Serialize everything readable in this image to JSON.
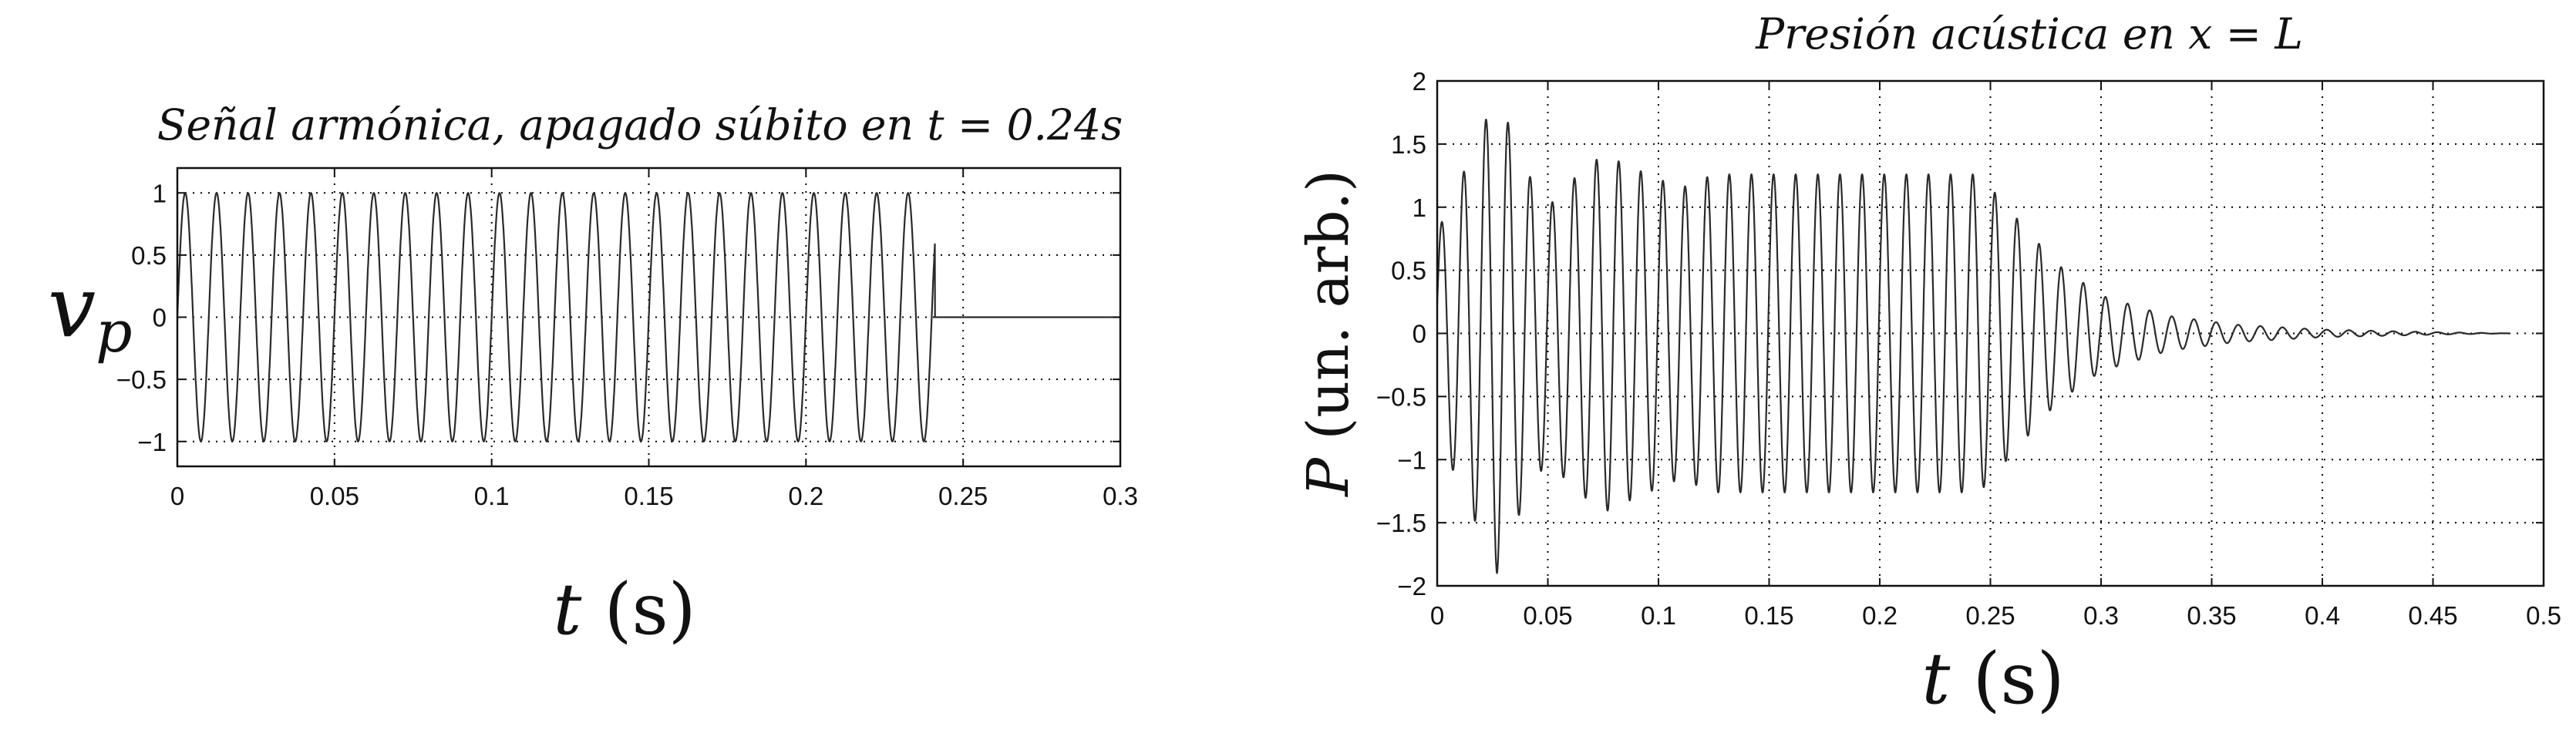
{
  "chart_data": [
    {
      "type": "line",
      "title": "Señal armónica, apagado súbito en t = 0.24s",
      "ylabel": "v_p",
      "xlabel": "t (s)",
      "xlim": [
        0,
        0.3
      ],
      "ylim": [
        -1.2,
        1.2
      ],
      "xticks": [
        0,
        0.05,
        0.1,
        0.15,
        0.2,
        0.25,
        0.3
      ],
      "xtick_labels": [
        "0",
        "0.05",
        "0.1",
        "0.15",
        "0.2",
        "0.25",
        "0.3"
      ],
      "yticks": [
        1,
        0.5,
        0,
        -0.5,
        -1
      ],
      "ytick_labels": [
        "1",
        "0.5",
        "0",
        "−0.5",
        "−1"
      ],
      "grid": true,
      "series": [
        {
          "signal": "sinusoid",
          "amplitude": 1,
          "frequency_hz": 100,
          "start": 0,
          "cutoff": 0.241,
          "value_after_cutoff": 0,
          "x_end": 0.3
        }
      ]
    },
    {
      "type": "line",
      "title": "Presión acústica en x = L",
      "ylabel": "P (un. arb.)",
      "xlabel": "t (s)",
      "xlim": [
        0,
        0.5
      ],
      "ylim": [
        -2,
        2
      ],
      "xticks": [
        0,
        0.05,
        0.1,
        0.15,
        0.2,
        0.25,
        0.3,
        0.35,
        0.4,
        0.45,
        0.5
      ],
      "xtick_labels": [
        "0",
        "0.05",
        "0.1",
        "0.15",
        "0.2",
        "0.25",
        "0.3",
        "0.35",
        "0.4",
        "0.45",
        "0.5"
      ],
      "yticks": [
        2,
        1.5,
        1,
        0.5,
        0,
        -0.5,
        -1,
        -1.5,
        -2
      ],
      "ytick_labels": [
        "2",
        "1.5",
        "1",
        "0.5",
        "0",
        "−0.5",
        "−1",
        "−1.5",
        "−2"
      ],
      "grid": true,
      "series": [
        {
          "signal": "oscillation",
          "frequency_hz": 100,
          "x_end": 0.485,
          "envelope": [
            [
              0,
              0.8
            ],
            [
              0.015,
              1.4
            ],
            [
              0.027,
              1.9
            ],
            [
              0.04,
              1.3
            ],
            [
              0.05,
              1.0
            ],
            [
              0.06,
              1.2
            ],
            [
              0.075,
              1.42
            ],
            [
              0.09,
              1.3
            ],
            [
              0.11,
              1.15
            ],
            [
              0.125,
              1.26
            ],
            [
              0.245,
              1.26
            ],
            [
              0.26,
              0.95
            ],
            [
              0.28,
              0.55
            ],
            [
              0.3,
              0.3
            ],
            [
              0.33,
              0.14
            ],
            [
              0.36,
              0.07
            ],
            [
              0.4,
              0.03
            ],
            [
              0.45,
              0.01
            ],
            [
              0.485,
              0.0
            ]
          ]
        }
      ]
    }
  ]
}
